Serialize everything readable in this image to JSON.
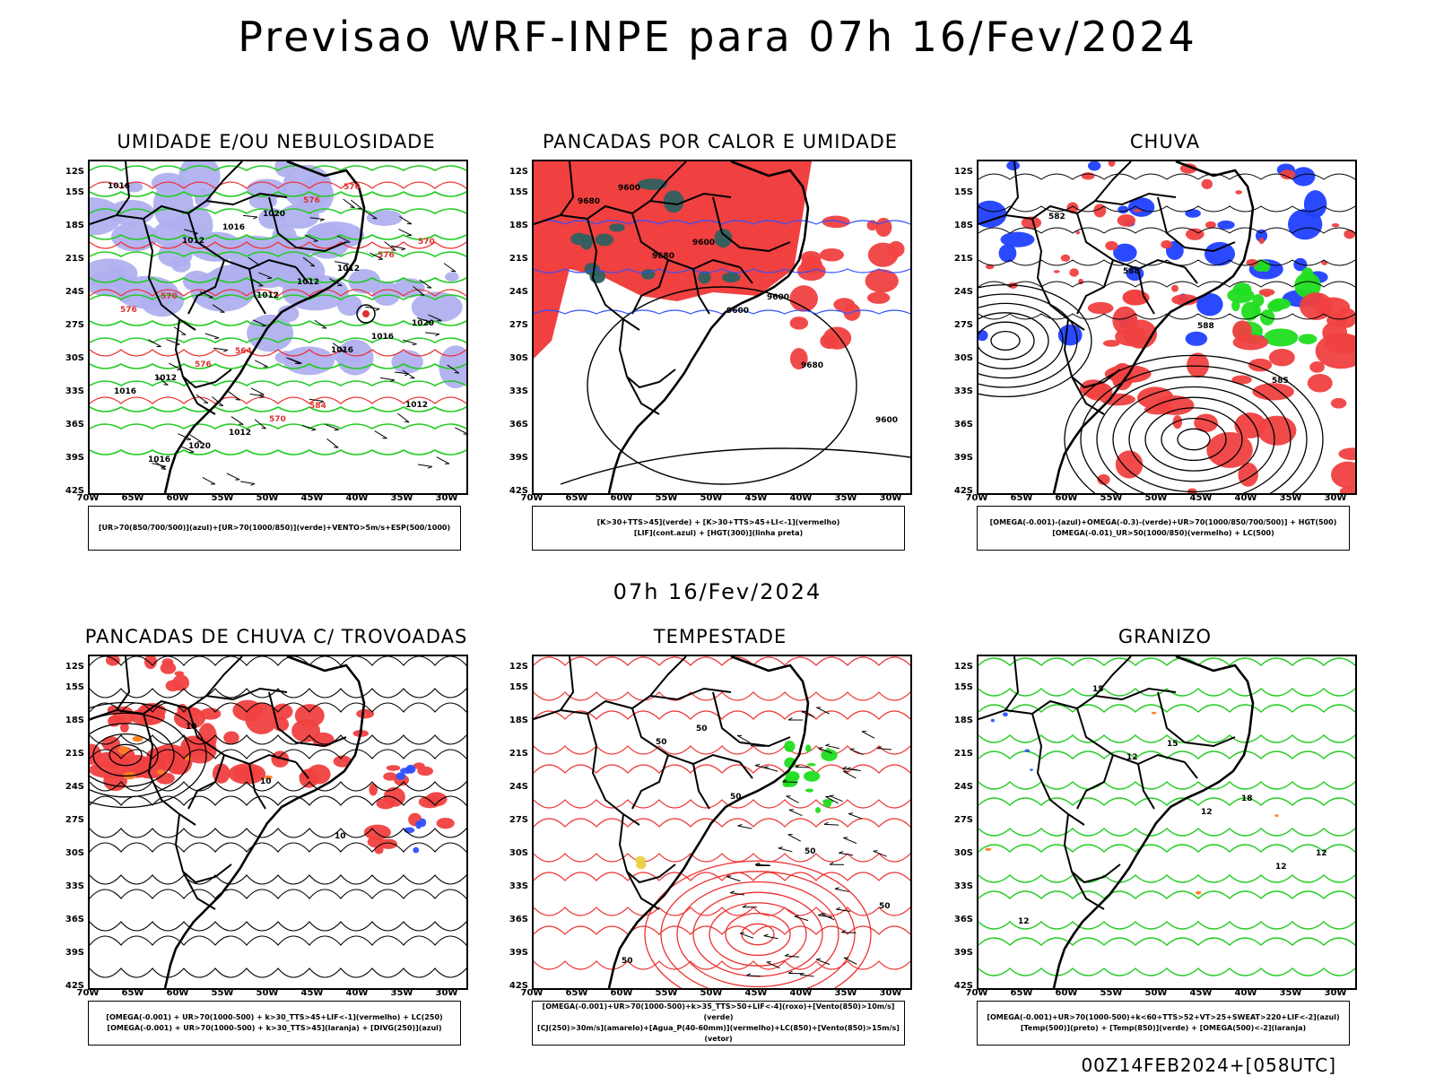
{
  "title": "Previsao WRF-INPE  para 07h 16/Fev/2024",
  "subtitle": "07h 16/Fev/2024",
  "footer": "00Z14FEB2024+[058UTC]",
  "lat_ticks": [
    "12S",
    "15S",
    "18S",
    "21S",
    "24S",
    "27S",
    "30S",
    "33S",
    "36S",
    "39S",
    "42S"
  ],
  "lon_ticks": [
    "70W",
    "65W",
    "60W",
    "55W",
    "50W",
    "45W",
    "40W",
    "35W",
    "30W"
  ],
  "colors": {
    "humidity_blue": "#b0b0f0",
    "humidity_green": "#22cc22",
    "heat_red": "#f04040",
    "teal": "#2f6060",
    "contour_blue": "#3050ff",
    "rain_blue": "#2040ff",
    "rain_green": "#20dd20",
    "yellow": "#e8d040",
    "orange": "#ff8020"
  },
  "panels": [
    {
      "title": "UMIDADE E/OU NEBULOSIDADE",
      "legend": [
        "[UR>70(850/700/500)](azul)+[UR>70(1000/850)](verde)+VENTO>5m/s+ESP(500/1000)"
      ],
      "labels": [
        "1016",
        "1012",
        "1012",
        "1016",
        "1012",
        "1016",
        "1016",
        "1012",
        "1016",
        "1016",
        "1020",
        "1020",
        "1012",
        "1020",
        "1012",
        "1012",
        "576",
        "576",
        "576",
        "576",
        "570",
        "576",
        "570",
        "570",
        "564",
        "584"
      ]
    },
    {
      "title": "PANCADAS POR CALOR E UMIDADE",
      "legend": [
        "[K>30+TTS>45](verde) + [K>30+TTS>45+LI<-1](vermelho)",
        "[LIF](cont.azul) + [HGT(300)](linha preta)"
      ],
      "labels": [
        "9680",
        "9680",
        "9600",
        "9680",
        "9600",
        "9600",
        "9600",
        "9600"
      ]
    },
    {
      "title": "CHUVA",
      "legend": [
        "[OMEGA(-0.001)-(azul)+OMEGA(-0.3)-(verde)+UR>70(1000/850/700/500)] + HGT(500)",
        "[OMEGA(-0.01)_UR>50(1000/850)(vermelho) + LC(500)"
      ],
      "labels": [
        "582",
        "588",
        "588",
        "585"
      ]
    },
    {
      "title": "PANCADAS DE CHUVA C/ TROVOADAS",
      "legend": [
        "[OMEGA(-0.001) + UR>70(1000-500) + k>30_TTS>45+LIF<-1](vermelho) + LC(250)",
        "[OMEGA(-0.001) + UR>70(1000-500) + k>30_TTS>45](laranja) + [DIVG(250)](azul)"
      ],
      "labels": [
        "10",
        "10",
        "10"
      ]
    },
    {
      "title": "TEMPESTADE",
      "legend": [
        "[OMEGA(-0.001)+UR>70(1000-500)+k>35_TTS>50+LIF<-4](roxo)+[Vento(850)>10m/s](verde)",
        "[CJ(250)>30m/s](amarelo)+[Agua_P(40-60mm)](vermelho)+LC(850)+[Vento(850)>15m/s](vetor)"
      ],
      "labels": [
        "50",
        "50",
        "50",
        "50",
        "50",
        "50"
      ]
    },
    {
      "title": "GRANIZO",
      "legend": [
        "[OMEGA(-0.001)+UR>70(1000-500)+k<60+TTS>52+VT>25+SWEAT>220+LIF<-2](azul)",
        "[Temp(500)](preto) + [Temp(850)](verde) + [OMEGA(500)<-2](laranja)"
      ],
      "labels": [
        "12",
        "12",
        "12",
        "12",
        "15",
        "15",
        "18",
        "12"
      ]
    }
  ]
}
